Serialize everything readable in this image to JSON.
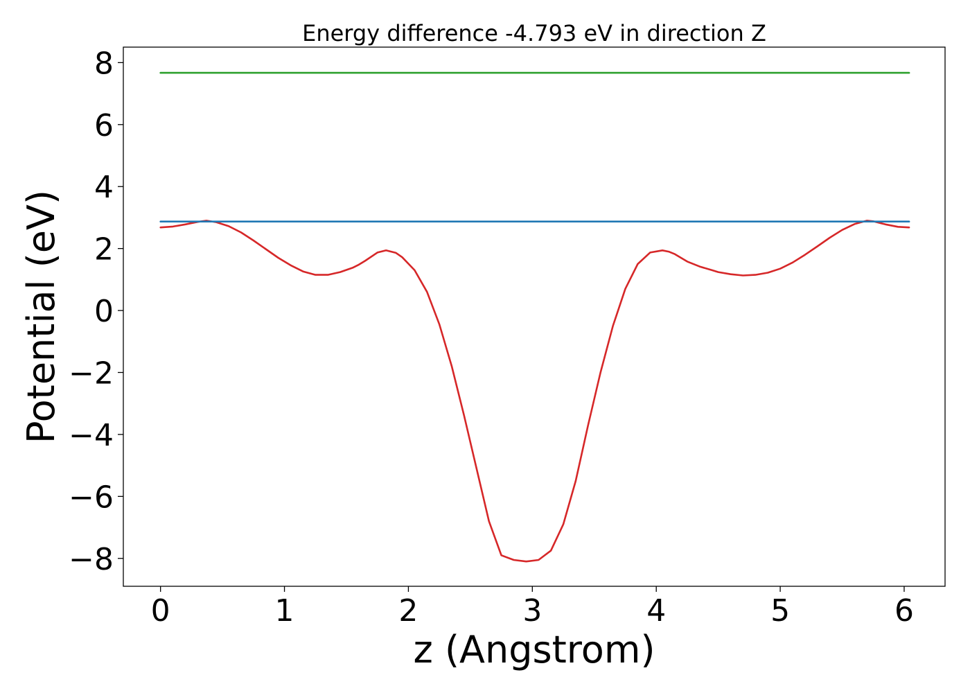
{
  "chart_data": {
    "type": "line",
    "title": "Energy difference -4.793 eV in direction Z",
    "xlabel": "z (Angstrom)",
    "ylabel": "Potential (eV)",
    "xlim": [
      -0.3,
      6.33
    ],
    "ylim": [
      -8.9,
      8.5
    ],
    "x_ticks": [
      0,
      1,
      2,
      3,
      4,
      5,
      6
    ],
    "x_tick_labels": [
      "0",
      "1",
      "2",
      "3",
      "4",
      "5",
      "6"
    ],
    "y_ticks": [
      -8,
      -6,
      -4,
      -2,
      0,
      2,
      4,
      6,
      8
    ],
    "y_tick_labels": [
      "−8",
      "−6",
      "−4",
      "−2",
      "0",
      "2",
      "4",
      "6",
      "8"
    ],
    "grid": false,
    "legend": "none",
    "series": [
      {
        "color": "#d62728",
        "x": [
          0.0,
          0.1,
          0.2,
          0.3,
          0.37,
          0.45,
          0.55,
          0.65,
          0.75,
          0.85,
          0.95,
          1.05,
          1.15,
          1.25,
          1.35,
          1.45,
          1.55,
          1.6,
          1.65,
          1.75,
          1.82,
          1.9,
          1.95,
          2.05,
          2.15,
          2.25,
          2.35,
          2.45,
          2.55,
          2.65,
          2.75,
          2.85,
          2.95,
          3.05,
          3.15,
          3.25,
          3.35,
          3.45,
          3.55,
          3.65,
          3.75,
          3.85,
          3.95,
          4.05,
          4.1,
          4.15,
          4.25,
          4.35,
          4.45,
          4.5,
          4.6,
          4.7,
          4.8,
          4.9,
          5.0,
          5.1,
          5.2,
          5.3,
          5.4,
          5.5,
          5.6,
          5.7,
          5.75,
          5.85,
          5.95,
          6.04
        ],
        "y": [
          2.68,
          2.71,
          2.78,
          2.86,
          2.9,
          2.85,
          2.72,
          2.52,
          2.26,
          1.98,
          1.7,
          1.46,
          1.26,
          1.15,
          1.15,
          1.24,
          1.38,
          1.48,
          1.6,
          1.87,
          1.94,
          1.86,
          1.72,
          1.3,
          0.6,
          -0.45,
          -1.8,
          -3.4,
          -5.1,
          -6.8,
          -7.9,
          -8.05,
          -8.1,
          -8.05,
          -7.75,
          -6.9,
          -5.5,
          -3.7,
          -2.0,
          -0.5,
          0.7,
          1.5,
          1.87,
          1.94,
          1.9,
          1.82,
          1.58,
          1.42,
          1.3,
          1.24,
          1.17,
          1.13,
          1.15,
          1.22,
          1.35,
          1.55,
          1.8,
          2.07,
          2.35,
          2.6,
          2.79,
          2.9,
          2.88,
          2.78,
          2.7,
          2.68
        ]
      },
      {
        "color": "#1f77b4",
        "x": [
          0.0,
          6.04
        ],
        "y": [
          2.87,
          2.87
        ]
      },
      {
        "color": "#2ca02c",
        "x": [
          0.0,
          6.04
        ],
        "y": [
          7.67,
          7.67
        ]
      }
    ]
  }
}
